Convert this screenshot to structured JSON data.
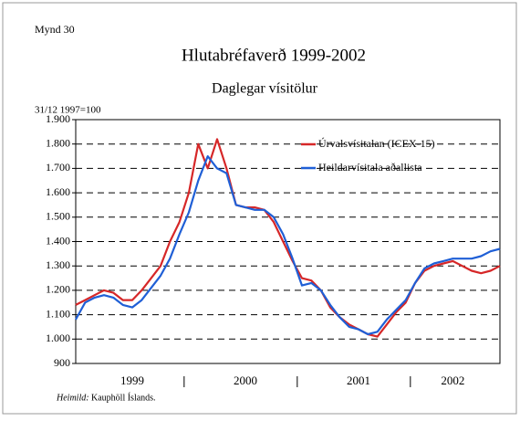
{
  "chart_data": {
    "type": "line",
    "figure_label": "Mynd 30",
    "title": "Hlutabréfaverð 1999-2002",
    "subtitle": "Daglegar vísitölur",
    "y_label": "31/12 1997=100",
    "source_label": "Heimild:",
    "source": "Kauphöll Íslands.",
    "categories": [
      null,
      null,
      null,
      null,
      null,
      null,
      "1999",
      null,
      null,
      null,
      null,
      null,
      null,
      null,
      null,
      null,
      null,
      null,
      "2000",
      null,
      null,
      null,
      null,
      null,
      null,
      null,
      null,
      null,
      null,
      null,
      "2001",
      null,
      null,
      null,
      null,
      null,
      null,
      null,
      null,
      null,
      "2002",
      null,
      null,
      null,
      null,
      null
    ],
    "series": [
      {
        "name": "Úrvalsvísitalan (ICEX-15)",
        "color": "#d62728",
        "values": [
          1140,
          1160,
          1180,
          1200,
          1190,
          1160,
          1160,
          1200,
          1250,
          1300,
          1400,
          1480,
          1600,
          1800,
          1700,
          1820,
          1700,
          1550,
          1540,
          1540,
          1530,
          1480,
          1400,
          1320,
          1250,
          1240,
          1200,
          1130,
          1090,
          1060,
          1040,
          1020,
          1010,
          1060,
          1110,
          1150,
          1230,
          1280,
          1300,
          1310,
          1320,
          1300,
          1280,
          1270,
          1280,
          1300
        ]
      },
      {
        "name": "Heildarvísitala aðallista",
        "color": "#1f5fd6",
        "values": [
          1080,
          1150,
          1170,
          1180,
          1170,
          1140,
          1130,
          1160,
          1210,
          1260,
          1330,
          1430,
          1520,
          1650,
          1750,
          1700,
          1680,
          1550,
          1540,
          1530,
          1530,
          1500,
          1430,
          1330,
          1220,
          1230,
          1200,
          1140,
          1090,
          1050,
          1040,
          1020,
          1030,
          1080,
          1120,
          1160,
          1230,
          1290,
          1310,
          1320,
          1330,
          1330,
          1330,
          1340,
          1360,
          1370
        ]
      }
    ],
    "ylim": [
      900,
      1900
    ],
    "yticks": [
      {
        "value": 900,
        "label": "900"
      },
      {
        "value": 1000,
        "label": "1.000"
      },
      {
        "value": 1100,
        "label": "1.100"
      },
      {
        "value": 1200,
        "label": "1.200"
      },
      {
        "value": 1300,
        "label": "1.300"
      },
      {
        "value": 1400,
        "label": "1.400"
      },
      {
        "value": 1500,
        "label": "1.500"
      },
      {
        "value": 1600,
        "label": "1.600"
      },
      {
        "value": 1700,
        "label": "1.700"
      },
      {
        "value": 1800,
        "label": "1.800"
      },
      {
        "value": 1900,
        "label": "1.900"
      }
    ],
    "grid": true,
    "legend": "upper right"
  }
}
